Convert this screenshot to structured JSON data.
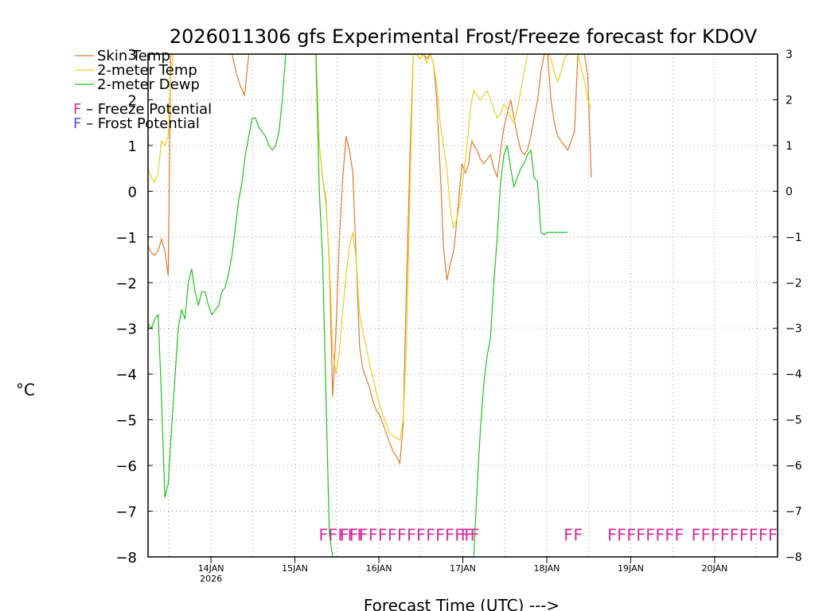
{
  "chart_data": {
    "type": "line",
    "title": "2026011306 gfs Experimental Frost/Freeze forecast for KDOV",
    "xlabel": "Forecast Time (UTC) --->",
    "ylabel": "°C",
    "ylim": [
      -8,
      3
    ],
    "xlim": [
      0,
      7.5
    ],
    "grid": true,
    "yticks_left": [
      "−8",
      "−7",
      "−6",
      "−5",
      "−4",
      "−3",
      "−2",
      "−1",
      "0",
      "1",
      "2",
      "3"
    ],
    "yticks_right": [
      "−8",
      "−7",
      "−6",
      "−5",
      "−4",
      "−3",
      "−2",
      "−1",
      "0",
      "1",
      "2",
      "3"
    ],
    "ytick_values": [
      -8,
      -7,
      -6,
      -5,
      -4,
      -3,
      -2,
      -1,
      0,
      1,
      2,
      3
    ],
    "xticks": [
      {
        "x": 0.75,
        "label": "14JAN",
        "sub": "2026"
      },
      {
        "x": 1.75,
        "label": "15JAN",
        "sub": ""
      },
      {
        "x": 2.75,
        "label": "16JAN",
        "sub": ""
      },
      {
        "x": 3.75,
        "label": "17JAN",
        "sub": ""
      },
      {
        "x": 4.75,
        "label": "18JAN",
        "sub": ""
      },
      {
        "x": 5.75,
        "label": "19JAN",
        "sub": ""
      },
      {
        "x": 6.75,
        "label": "20JAN",
        "sub": ""
      }
    ],
    "legend": {
      "position": "top-left",
      "entries": [
        {
          "name": "Skin Temp",
          "color": "#e07a2e"
        },
        {
          "name": "2-meter Temp",
          "color": "#e8d020"
        },
        {
          "name": "2-meter Dewp",
          "color": "#1ec21e"
        }
      ],
      "notes": [
        {
          "symbol": "F",
          "text": " – Freeze Potential",
          "color": "#d22e9c"
        },
        {
          "symbol": "F",
          "text": " – Frost Potential",
          "color": "#5050e0"
        }
      ]
    },
    "series": [
      {
        "name": "Skin Temp",
        "color": "#e07a2e",
        "x": [
          0,
          0.04,
          0.08,
          0.12,
          0.16,
          0.2,
          0.24,
          0.27,
          0.3,
          0.33,
          0.95,
          1.0,
          1.05,
          1.1,
          1.15,
          1.2,
          2.0,
          2.04,
          2.08,
          2.12,
          2.16,
          2.2,
          2.24,
          2.28,
          2.32,
          2.36,
          2.4,
          2.44,
          2.48,
          2.52,
          2.56,
          2.6,
          2.64,
          2.68,
          2.72,
          2.76,
          2.8,
          2.84,
          2.88,
          2.92,
          2.96,
          3.0,
          3.04,
          3.08,
          3.12,
          3.16,
          3.2,
          3.24,
          3.28,
          3.32,
          3.36,
          3.4,
          3.44,
          3.48,
          3.52,
          3.56,
          3.6,
          3.64,
          3.66,
          3.68,
          3.7,
          3.72,
          3.74,
          3.76,
          3.78,
          3.8,
          3.82,
          3.84,
          3.86,
          3.88,
          3.92,
          3.96,
          4.0,
          4.04,
          4.08,
          4.12,
          4.16,
          4.2,
          4.24,
          4.28,
          4.32,
          4.36,
          4.4,
          4.44,
          4.48,
          4.52,
          4.56,
          4.6,
          4.64,
          4.68,
          4.72,
          4.76,
          4.8,
          4.84,
          4.88,
          4.92,
          4.96,
          5.0,
          5.04,
          5.08,
          5.12,
          5.16,
          5.2,
          5.24,
          5.28
        ],
        "y": [
          -1.2,
          -1.35,
          -1.4,
          -1.3,
          -1.05,
          -1.3,
          -1.85,
          3.0,
          3.0,
          3.0,
          3.0,
          3.0,
          2.6,
          2.3,
          2.1,
          3.0,
          3.0,
          1.0,
          0.3,
          -0.2,
          -1.6,
          -4.5,
          -3.0,
          -1.0,
          0.3,
          1.2,
          0.9,
          0.4,
          -1.5,
          -3.4,
          -3.9,
          -4.1,
          -4.3,
          -4.6,
          -4.8,
          -4.9,
          -5.1,
          -5.3,
          -5.5,
          -5.7,
          -5.8,
          -5.95,
          -5.1,
          -2.0,
          0.8,
          3.0,
          3.0,
          2.9,
          3.0,
          2.9,
          3.0,
          2.8,
          2.0,
          0.5,
          -1.2,
          -1.95,
          -1.6,
          -1.3,
          -1.0,
          -0.6,
          -0.2,
          0.2,
          0.6,
          0.5,
          0.4,
          0.5,
          0.6,
          0.9,
          1.1,
          1.0,
          0.9,
          0.7,
          0.6,
          0.7,
          0.8,
          0.5,
          0.3,
          0.9,
          1.4,
          1.7,
          2.0,
          1.6,
          1.2,
          0.9,
          0.8,
          0.9,
          1.2,
          1.6,
          2.0,
          2.6,
          3.0,
          3.0,
          2.0,
          1.5,
          1.2,
          1.1,
          1.0,
          0.9,
          1.1,
          1.3,
          3.0,
          3.0,
          3.0,
          2.5,
          0.3
        ]
      },
      {
        "name": "2-meter Temp",
        "color": "#e8d020",
        "x": [
          0,
          0.04,
          0.08,
          0.12,
          0.16,
          0.2,
          0.24,
          0.27,
          0.3,
          2.0,
          2.04,
          2.08,
          2.12,
          2.16,
          2.2,
          2.24,
          2.28,
          2.32,
          2.36,
          2.4,
          2.44,
          2.48,
          2.52,
          2.56,
          2.6,
          2.64,
          2.68,
          2.72,
          2.76,
          2.8,
          2.84,
          2.88,
          2.92,
          2.96,
          3.0,
          3.04,
          3.08,
          3.12,
          3.16,
          3.2,
          3.24,
          3.28,
          3.32,
          3.36,
          3.4,
          3.44,
          3.48,
          3.52,
          3.56,
          3.6,
          3.64,
          3.68,
          3.72,
          3.76,
          3.8,
          3.84,
          3.88,
          3.92,
          3.96,
          4.0,
          4.04,
          4.08,
          4.12,
          4.16,
          4.2,
          4.24,
          4.28,
          4.32,
          4.36,
          4.4,
          4.44,
          4.48,
          4.52,
          4.56,
          4.6,
          4.64,
          4.68,
          4.72,
          4.76,
          4.8,
          4.84,
          4.88,
          4.92,
          4.96,
          5.0,
          5.04,
          5.08,
          5.12,
          5.16,
          5.2,
          5.24,
          5.28
        ],
        "y": [
          0.5,
          0.3,
          0.2,
          0.4,
          1.1,
          1.0,
          1.2,
          2.5,
          3.0,
          3.0,
          1.0,
          0.3,
          -0.3,
          -1.5,
          -3.5,
          -4.0,
          -3.5,
          -2.6,
          -1.8,
          -1.2,
          -0.9,
          -1.5,
          -2.7,
          -3.1,
          -3.4,
          -3.8,
          -4.1,
          -4.4,
          -4.7,
          -4.9,
          -5.1,
          -5.3,
          -5.35,
          -5.4,
          -5.45,
          -5.0,
          -3.3,
          0.0,
          3.0,
          3.0,
          2.9,
          3.0,
          2.8,
          3.0,
          2.8,
          2.3,
          1.5,
          1.0,
          0.5,
          -0.4,
          -0.8,
          -0.6,
          -0.2,
          0.4,
          1.0,
          1.8,
          2.2,
          2.1,
          2.0,
          2.1,
          2.2,
          2.0,
          1.8,
          1.6,
          1.7,
          1.9,
          1.8,
          1.6,
          1.5,
          1.8,
          2.2,
          2.6,
          3.0,
          3.0,
          3.0,
          3.0,
          3.0,
          3.0,
          3.0,
          2.9,
          2.6,
          2.4,
          2.6,
          2.9,
          3.0,
          3.0,
          3.0,
          3.0,
          2.7,
          2.4,
          2.0,
          1.8
        ]
      },
      {
        "name": "2-meter Dewp",
        "color": "#1ec21e",
        "x": [
          0,
          0.04,
          0.08,
          0.12,
          0.16,
          0.2,
          0.24,
          0.28,
          0.32,
          0.36,
          0.4,
          0.44,
          0.48,
          0.52,
          0.56,
          0.6,
          0.64,
          0.68,
          0.72,
          0.76,
          0.8,
          0.84,
          0.88,
          0.92,
          0.96,
          1.0,
          1.04,
          1.08,
          1.12,
          1.16,
          1.2,
          1.24,
          1.28,
          1.32,
          1.36,
          1.4,
          1.44,
          1.48,
          1.52,
          1.56,
          1.6,
          1.64,
          1.68,
          1.72,
          1.76,
          1.8,
          1.84,
          1.88,
          1.92,
          1.96,
          2.0,
          2.04,
          2.08,
          2.12,
          2.16,
          2.2,
          3.88,
          3.92,
          3.96,
          4.0,
          4.04,
          4.08,
          4.12,
          4.16,
          4.2,
          4.24,
          4.28,
          4.32,
          4.36,
          4.4,
          4.44,
          4.48,
          4.52,
          4.56,
          4.6,
          4.64,
          4.68,
          4.72,
          4.76,
          4.8,
          4.84,
          4.88,
          4.92,
          4.96,
          5.0
        ],
        "y": [
          -2.9,
          -3.0,
          -2.8,
          -2.7,
          -4.5,
          -6.7,
          -6.4,
          -5.2,
          -4.1,
          -3.0,
          -2.6,
          -2.8,
          -2.0,
          -1.7,
          -2.2,
          -2.5,
          -2.2,
          -2.2,
          -2.5,
          -2.7,
          -2.6,
          -2.5,
          -2.2,
          -2.1,
          -1.8,
          -1.4,
          -0.8,
          -0.2,
          0.2,
          0.8,
          1.2,
          1.6,
          1.6,
          1.4,
          1.3,
          1.2,
          1.0,
          0.9,
          1.0,
          1.3,
          2.0,
          3.0,
          3.0,
          3.0,
          3.0,
          3.0,
          3.0,
          3.0,
          3.0,
          3.0,
          3.0,
          0.0,
          -1.5,
          -4.5,
          -7.5,
          -8.0,
          -8.0,
          -6.5,
          -5.2,
          -4.2,
          -3.6,
          -3.2,
          -2.0,
          -1.0,
          0.2,
          0.8,
          1.0,
          0.5,
          0.1,
          0.3,
          0.5,
          0.6,
          0.8,
          0.9,
          0.3,
          0.2,
          -0.9,
          -0.95,
          -0.9,
          -0.9,
          -0.9,
          -0.9,
          -0.9,
          -0.9,
          -0.9
        ]
      }
    ],
    "freeze_marks": {
      "symbol": "F",
      "color": "#d22e9c",
      "groups": [
        {
          "label": "FFFFF",
          "x": 2.03
        },
        {
          "label": "FFFFFFFFFFFFFF",
          "x": 2.28
        },
        {
          "label": "FF",
          "x": 3.72
        },
        {
          "label": "FF",
          "x": 4.95
        },
        {
          "label": "FFFFFFFF",
          "x": 5.47
        },
        {
          "label": "FFFFFFFFF",
          "x": 6.47
        }
      ]
    }
  }
}
